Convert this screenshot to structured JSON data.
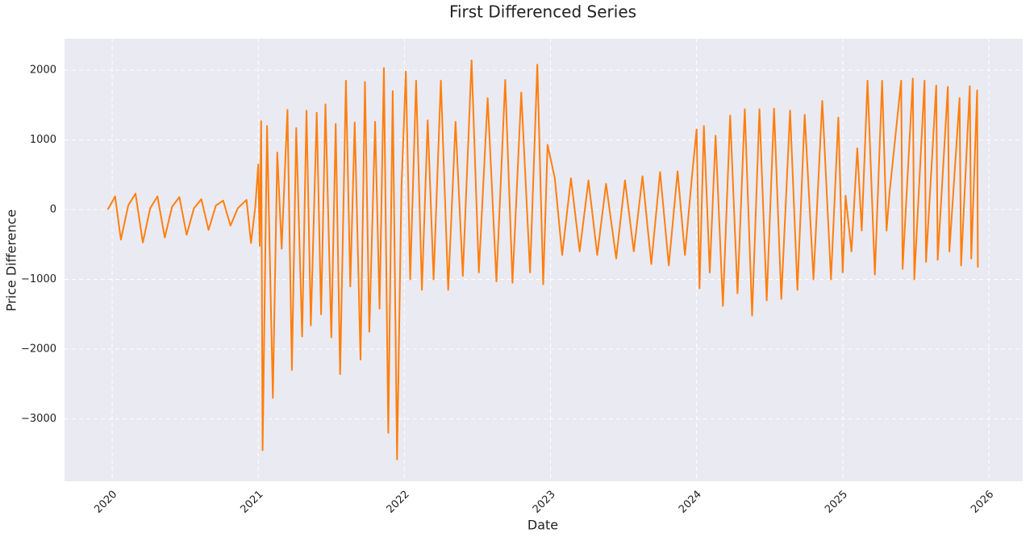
{
  "chart_data": {
    "type": "line",
    "title": "First Differenced Series",
    "x_label": "Date",
    "y_label": "Price Difference",
    "color": "#ff7f0e",
    "grid": true,
    "x": [
      2019.97,
      2020.02,
      2020.06,
      2020.11,
      2020.16,
      2020.21,
      2020.26,
      2020.31,
      2020.36,
      2020.41,
      2020.46,
      2020.51,
      2020.56,
      2020.61,
      2020.66,
      2020.71,
      2020.76,
      2020.81,
      2020.86,
      2020.92,
      2020.95,
      2020.98,
      2021.0,
      2021.01,
      2021.02,
      2021.03,
      2021.06,
      2021.1,
      2021.13,
      2021.16,
      2021.2,
      2021.23,
      2021.26,
      2021.3,
      2021.33,
      2021.36,
      2021.4,
      2021.43,
      2021.46,
      2021.5,
      2021.53,
      2021.56,
      2021.6,
      2021.63,
      2021.66,
      2021.7,
      2021.73,
      2021.76,
      2021.8,
      2021.83,
      2021.86,
      2021.89,
      2021.92,
      2021.95,
      2021.98,
      2022.01,
      2022.04,
      2022.08,
      2022.12,
      2022.16,
      2022.2,
      2022.25,
      2022.3,
      2022.35,
      2022.4,
      2022.46,
      2022.51,
      2022.57,
      2022.63,
      2022.69,
      2022.74,
      2022.8,
      2022.86,
      2022.91,
      2022.95,
      2022.98,
      2023.03,
      2023.08,
      2023.14,
      2023.2,
      2023.26,
      2023.32,
      2023.38,
      2023.45,
      2023.51,
      2023.57,
      2023.63,
      2023.69,
      2023.75,
      2023.81,
      2023.87,
      2023.92,
      2023.97,
      2024.0,
      2024.02,
      2024.05,
      2024.09,
      2024.13,
      2024.18,
      2024.23,
      2024.28,
      2024.33,
      2024.38,
      2024.43,
      2024.48,
      2024.53,
      2024.58,
      2024.64,
      2024.69,
      2024.74,
      2024.8,
      2024.86,
      2024.92,
      2024.97,
      2025.0,
      2025.02,
      2025.06,
      2025.1,
      2025.13,
      2025.17,
      2025.22,
      2025.27,
      2025.3,
      2025.32,
      2025.4,
      2025.41,
      2025.48,
      2025.49,
      2025.56,
      2025.57,
      2025.64,
      2025.65,
      2025.72,
      2025.73,
      2025.8,
      2025.81,
      2025.87,
      2025.88,
      2025.92,
      2025.925
    ],
    "values": [
      0,
      190,
      -430,
      60,
      230,
      -470,
      20,
      190,
      -400,
      40,
      180,
      -360,
      20,
      150,
      -290,
      60,
      130,
      -230,
      20,
      140,
      -480,
      50,
      650,
      -520,
      1270,
      -3450,
      1200,
      -2700,
      820,
      -560,
      1430,
      -2300,
      1170,
      -1820,
      1420,
      -1660,
      1390,
      -1500,
      1510,
      -1830,
      1230,
      -2360,
      1850,
      -1100,
      1250,
      -2150,
      1830,
      -1750,
      1260,
      -1420,
      2030,
      -3200,
      1700,
      -3580,
      300,
      1980,
      -1000,
      1850,
      -1150,
      1280,
      -1000,
      1850,
      -1150,
      1260,
      -950,
      2140,
      -900,
      1600,
      -1030,
      1860,
      -1050,
      1680,
      -900,
      2080,
      -1070,
      930,
      450,
      -650,
      450,
      -600,
      420,
      -650,
      370,
      -700,
      420,
      -600,
      480,
      -780,
      540,
      -800,
      550,
      -650,
      510,
      1150,
      -1130,
      1200,
      -900,
      1060,
      -1380,
      1350,
      -1200,
      1440,
      -1520,
      1440,
      -1300,
      1450,
      -1280,
      1420,
      -1150,
      1360,
      -1000,
      1560,
      -1000,
      1320,
      -900,
      200,
      -600,
      880,
      -300,
      1850,
      -930,
      1850,
      -300,
      230,
      1850,
      -850,
      1880,
      -1000,
      1850,
      -750,
      1780,
      -720,
      1760,
      -600,
      1600,
      -800,
      1770,
      -700,
      1710,
      -830
    ],
    "xlim": [
      2019.674,
      2026.232
    ],
    "xticks": [
      2020,
      2021,
      2022,
      2023,
      2024,
      2025,
      2026
    ],
    "ylim": [
      -3896,
      2451
    ],
    "yticks": [
      {
        "value": -3000,
        "label": "−3000"
      },
      {
        "value": -2000,
        "label": "−2000"
      },
      {
        "value": -1000,
        "label": "−1000"
      },
      0,
      1000,
      2000
    ]
  }
}
